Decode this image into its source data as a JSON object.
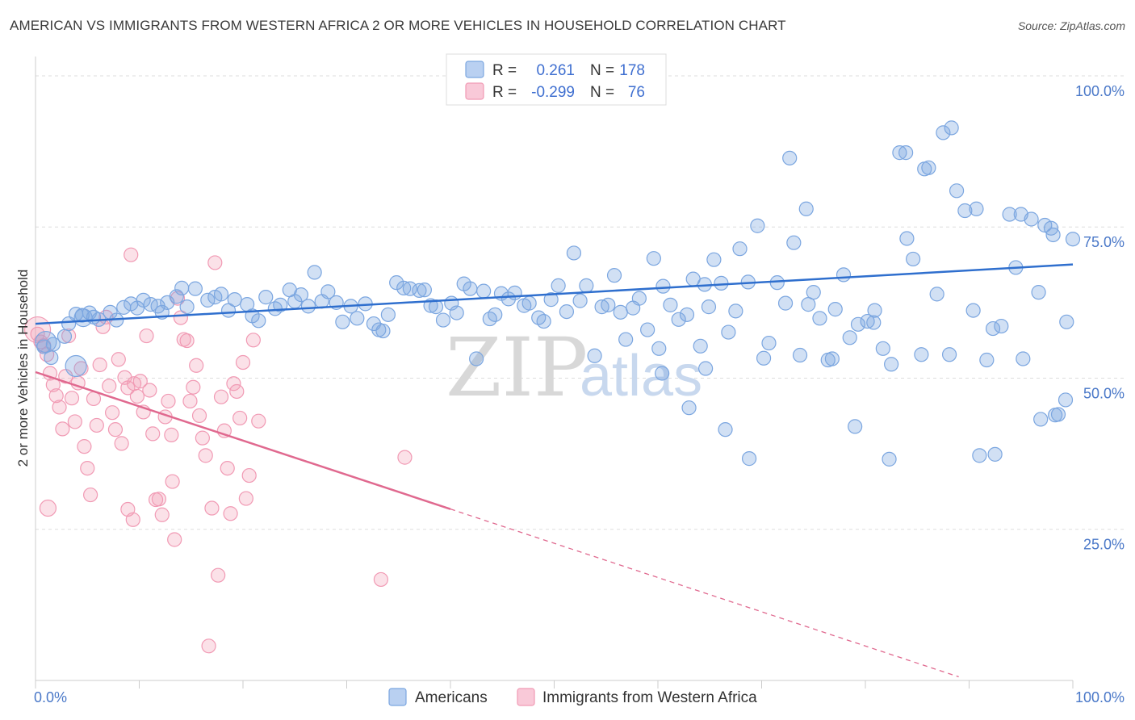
{
  "header": {
    "title": "AMERICAN VS IMMIGRANTS FROM WESTERN AFRICA 2 OR MORE VEHICLES IN HOUSEHOLD CORRELATION CHART",
    "source": "Source: ZipAtlas.com"
  },
  "watermark": {
    "zip": "ZIP",
    "atlas": "atlas"
  },
  "legend_box": {
    "rows": [
      {
        "r_label": "R =",
        "r_value": "0.261",
        "n_label": "N =",
        "n_value": "178",
        "color": "#7ba6e0"
      },
      {
        "r_label": "R =",
        "r_value": "-0.299",
        "n_label": "N =",
        "n_value": "76",
        "color": "#f19ab4"
      }
    ]
  },
  "bottom_legend": {
    "items": [
      {
        "label": "Americans",
        "color": "#7ba6e0"
      },
      {
        "label": "Immigrants from Western Africa",
        "color": "#f19ab4"
      }
    ]
  },
  "colors": {
    "blue": "#7ba6e0",
    "blue_line": "#2f6fce",
    "pink": "#f19ab4",
    "pink_line": "#e0698f",
    "grid": "#dddddd"
  },
  "chart_data": {
    "type": "scatter",
    "title": "AMERICAN VS IMMIGRANTS FROM WESTERN AFRICA 2 OR MORE VEHICLES IN HOUSEHOLD CORRELATION CHART",
    "xlabel": "",
    "ylabel": "2 or more Vehicles in Household",
    "xlim": [
      0,
      100
    ],
    "ylim": [
      0,
      102
    ],
    "x_tick_labels": [
      "0.0%",
      "100.0%"
    ],
    "y_tick_labels": [
      "25.0%",
      "50.0%",
      "75.0%",
      "100.0%"
    ],
    "y_ticks": [
      25,
      50,
      75,
      100
    ],
    "grid": true,
    "legend_position": "top-center",
    "series": [
      {
        "name": "Americans",
        "R": 0.261,
        "N": 178,
        "trend": {
          "x": [
            0,
            100
          ],
          "y": [
            59.0,
            68.8
          ],
          "dashed_from": null
        },
        "points": [
          [
            0.8,
            55.2
          ],
          [
            1.5,
            53.4
          ],
          [
            1.7,
            55.6
          ],
          [
            2.8,
            56.9
          ],
          [
            3.2,
            59.0
          ],
          [
            3.9,
            60.6
          ],
          [
            4.5,
            60.4
          ],
          [
            5.2,
            60.8
          ],
          [
            5.6,
            60.1
          ],
          [
            6.1,
            59.7
          ],
          [
            7.2,
            60.9
          ],
          [
            7.8,
            59.6
          ],
          [
            8.5,
            61.7
          ],
          [
            9.2,
            62.3
          ],
          [
            9.8,
            61.6
          ],
          [
            10.4,
            62.9
          ],
          [
            11.1,
            62.2
          ],
          [
            11.8,
            61.9
          ],
          [
            12.2,
            60.9
          ],
          [
            12.7,
            62.5
          ],
          [
            13.6,
            63.5
          ],
          [
            14.6,
            61.8
          ],
          [
            14.1,
            64.9
          ],
          [
            15.4,
            64.8
          ],
          [
            16.6,
            62.9
          ],
          [
            17.3,
            63.4
          ],
          [
            17.9,
            63.9
          ],
          [
            18.6,
            61.2
          ],
          [
            19.2,
            63.0
          ],
          [
            20.4,
            62.2
          ],
          [
            20.9,
            60.3
          ],
          [
            21.5,
            59.5
          ],
          [
            22.2,
            63.4
          ],
          [
            23.1,
            61.5
          ],
          [
            23.6,
            62.1
          ],
          [
            24.5,
            64.6
          ],
          [
            25.0,
            62.7
          ],
          [
            25.6,
            63.8
          ],
          [
            26.3,
            61.9
          ],
          [
            26.9,
            67.5
          ],
          [
            27.6,
            62.7
          ],
          [
            28.2,
            64.3
          ],
          [
            29.0,
            62.5
          ],
          [
            29.6,
            59.3
          ],
          [
            30.4,
            61.9
          ],
          [
            31.0,
            59.9
          ],
          [
            31.8,
            62.3
          ],
          [
            32.6,
            59.0
          ],
          [
            33.1,
            58.0
          ],
          [
            33.5,
            57.8
          ],
          [
            34.0,
            60.5
          ],
          [
            34.8,
            65.8
          ],
          [
            35.5,
            64.9
          ],
          [
            36.1,
            64.8
          ],
          [
            37.0,
            64.5
          ],
          [
            37.5,
            64.6
          ],
          [
            38.1,
            62.0
          ],
          [
            38.6,
            61.8
          ],
          [
            39.3,
            59.6
          ],
          [
            40.1,
            62.4
          ],
          [
            40.6,
            60.8
          ],
          [
            41.3,
            65.6
          ],
          [
            41.9,
            64.8
          ],
          [
            42.5,
            53.2
          ],
          [
            43.2,
            64.4
          ],
          [
            43.8,
            59.8
          ],
          [
            44.3,
            60.5
          ],
          [
            44.9,
            64.0
          ],
          [
            45.6,
            63.1
          ],
          [
            46.2,
            64.1
          ],
          [
            47.1,
            62.0
          ],
          [
            47.6,
            62.4
          ],
          [
            48.5,
            60.0
          ],
          [
            49.0,
            59.4
          ],
          [
            49.7,
            63.0
          ],
          [
            50.4,
            65.3
          ],
          [
            51.2,
            61.0
          ],
          [
            51.9,
            70.7
          ],
          [
            52.5,
            62.8
          ],
          [
            53.1,
            65.3
          ],
          [
            53.9,
            53.7
          ],
          [
            54.6,
            61.8
          ],
          [
            55.2,
            62.1
          ],
          [
            55.8,
            67.0
          ],
          [
            56.4,
            60.9
          ],
          [
            56.9,
            56.4
          ],
          [
            57.6,
            61.6
          ],
          [
            58.2,
            63.2
          ],
          [
            59.0,
            58.0
          ],
          [
            59.6,
            69.8
          ],
          [
            60.5,
            65.2
          ],
          [
            61.2,
            62.1
          ],
          [
            62.0,
            59.7
          ],
          [
            62.8,
            60.5
          ],
          [
            63.4,
            66.4
          ],
          [
            64.1,
            55.3
          ],
          [
            64.5,
            65.5
          ],
          [
            64.9,
            61.8
          ],
          [
            65.4,
            69.6
          ],
          [
            66.1,
            65.7
          ],
          [
            66.8,
            57.6
          ],
          [
            67.5,
            61.1
          ],
          [
            67.9,
            71.4
          ],
          [
            68.7,
            65.9
          ],
          [
            69.6,
            75.2
          ],
          [
            70.2,
            53.3
          ],
          [
            70.7,
            55.8
          ],
          [
            71.5,
            65.8
          ],
          [
            72.3,
            62.4
          ],
          [
            73.1,
            72.4
          ],
          [
            73.7,
            53.8
          ],
          [
            74.5,
            62.2
          ],
          [
            75.0,
            64.2
          ],
          [
            75.6,
            59.9
          ],
          [
            76.4,
            53.0
          ],
          [
            77.1,
            61.4
          ],
          [
            77.9,
            67.1
          ],
          [
            78.5,
            56.7
          ],
          [
            79.3,
            58.9
          ],
          [
            80.2,
            59.4
          ],
          [
            80.9,
            61.2
          ],
          [
            81.7,
            54.9
          ],
          [
            82.5,
            52.3
          ],
          [
            83.3,
            87.3
          ],
          [
            84.0,
            73.1
          ],
          [
            84.6,
            69.7
          ],
          [
            85.4,
            53.9
          ],
          [
            86.1,
            84.8
          ],
          [
            86.9,
            63.9
          ],
          [
            87.5,
            90.6
          ],
          [
            88.1,
            53.9
          ],
          [
            88.8,
            81.0
          ],
          [
            89.6,
            77.7
          ],
          [
            90.4,
            61.2
          ],
          [
            91.0,
            37.2
          ],
          [
            91.7,
            53.0
          ],
          [
            92.3,
            58.2
          ],
          [
            93.1,
            58.6
          ],
          [
            93.9,
            77.1
          ],
          [
            94.5,
            68.3
          ],
          [
            95.2,
            53.2
          ],
          [
            96.0,
            76.3
          ],
          [
            96.7,
            64.2
          ],
          [
            97.3,
            75.3
          ],
          [
            98.1,
            73.7
          ],
          [
            98.6,
            44.0
          ],
          [
            99.4,
            59.3
          ],
          [
            100.0,
            73.0
          ],
          [
            60.1,
            54.9
          ],
          [
            63.0,
            45.1
          ],
          [
            66.5,
            41.5
          ],
          [
            68.8,
            36.7
          ],
          [
            72.7,
            86.4
          ],
          [
            74.3,
            78.0
          ],
          [
            76.8,
            53.2
          ],
          [
            79.0,
            42.0
          ],
          [
            80.8,
            59.2
          ],
          [
            82.3,
            36.6
          ],
          [
            83.9,
            87.3
          ],
          [
            85.7,
            84.6
          ],
          [
            88.3,
            91.4
          ],
          [
            90.7,
            78.0
          ],
          [
            92.5,
            37.4
          ],
          [
            95.0,
            77.1
          ],
          [
            96.9,
            43.2
          ],
          [
            97.9,
            74.8
          ],
          [
            98.3,
            43.9
          ],
          [
            99.3,
            46.4
          ],
          [
            60.4,
            50.8
          ],
          [
            64.6,
            51.6
          ]
        ]
      },
      {
        "name": "Immigrants from Western Africa",
        "R": -0.299,
        "N": 76,
        "trend": {
          "x": [
            0,
            89
          ],
          "y": [
            51.0,
            0.6
          ],
          "dashed_from": 40
        },
        "points": [
          [
            0.2,
            57.3
          ],
          [
            0.5,
            56.0
          ],
          [
            0.8,
            55.4
          ],
          [
            1.1,
            53.9
          ],
          [
            1.4,
            50.8
          ],
          [
            1.7,
            48.9
          ],
          [
            2.0,
            47.1
          ],
          [
            2.3,
            45.2
          ],
          [
            2.6,
            41.6
          ],
          [
            2.9,
            50.3
          ],
          [
            3.2,
            57.0
          ],
          [
            3.5,
            46.7
          ],
          [
            3.8,
            42.8
          ],
          [
            4.1,
            49.2
          ],
          [
            4.4,
            51.6
          ],
          [
            4.7,
            38.7
          ],
          [
            5.0,
            35.1
          ],
          [
            5.3,
            30.7
          ],
          [
            5.6,
            46.6
          ],
          [
            5.9,
            42.2
          ],
          [
            6.2,
            52.2
          ],
          [
            6.5,
            58.5
          ],
          [
            6.8,
            60.1
          ],
          [
            7.1,
            48.7
          ],
          [
            7.4,
            44.3
          ],
          [
            7.7,
            41.5
          ],
          [
            8.0,
            53.1
          ],
          [
            8.3,
            39.2
          ],
          [
            8.6,
            50.1
          ],
          [
            8.9,
            48.4
          ],
          [
            9.2,
            70.4
          ],
          [
            9.5,
            49.1
          ],
          [
            9.8,
            47.0
          ],
          [
            10.1,
            49.5
          ],
          [
            10.4,
            44.4
          ],
          [
            10.7,
            57.0
          ],
          [
            11.0,
            48.0
          ],
          [
            11.3,
            40.8
          ],
          [
            11.6,
            29.9
          ],
          [
            11.9,
            30.0
          ],
          [
            12.2,
            27.4
          ],
          [
            12.5,
            43.6
          ],
          [
            12.8,
            46.2
          ],
          [
            13.1,
            40.6
          ],
          [
            13.4,
            23.3
          ],
          [
            13.7,
            63.2
          ],
          [
            14.0,
            60.0
          ],
          [
            14.3,
            56.4
          ],
          [
            14.6,
            56.2
          ],
          [
            14.9,
            46.2
          ],
          [
            15.2,
            48.5
          ],
          [
            15.5,
            52.1
          ],
          [
            15.8,
            43.8
          ],
          [
            16.1,
            40.1
          ],
          [
            16.4,
            37.2
          ],
          [
            16.7,
            5.7
          ],
          [
            17.0,
            28.5
          ],
          [
            17.3,
            69.1
          ],
          [
            17.6,
            17.4
          ],
          [
            17.9,
            46.9
          ],
          [
            18.2,
            41.3
          ],
          [
            18.5,
            35.1
          ],
          [
            18.8,
            27.6
          ],
          [
            19.1,
            49.1
          ],
          [
            19.4,
            47.8
          ],
          [
            19.7,
            43.4
          ],
          [
            20.0,
            52.6
          ],
          [
            20.3,
            30.1
          ],
          [
            20.6,
            33.9
          ],
          [
            21.0,
            56.3
          ],
          [
            21.5,
            42.9
          ],
          [
            33.3,
            16.7
          ],
          [
            35.6,
            36.9
          ],
          [
            8.9,
            28.3
          ],
          [
            9.4,
            26.6
          ],
          [
            13.2,
            32.9
          ]
        ]
      }
    ]
  }
}
